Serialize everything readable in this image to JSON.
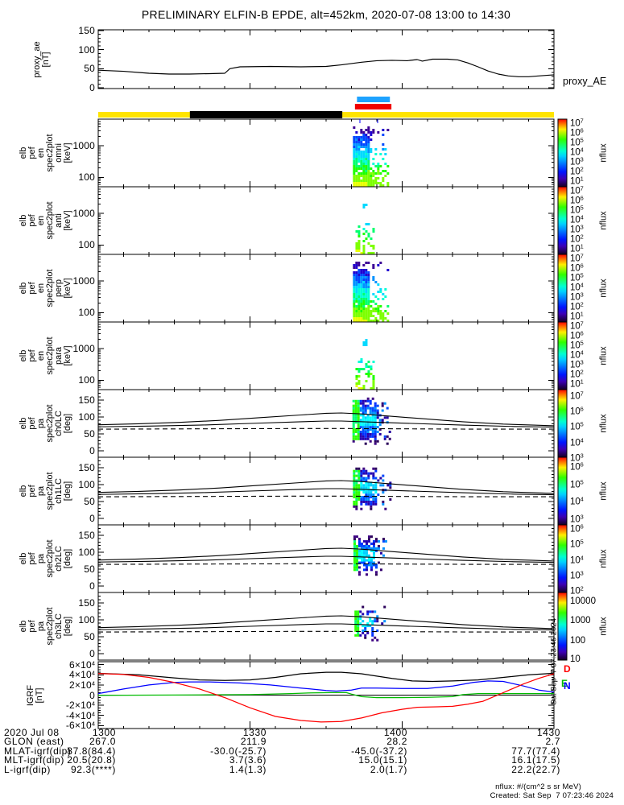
{
  "title": "PRELIMINARY ELFIN-B EPDE, alt=452km, 2020-07-08 13:00 to 14:30",
  "proxy_right_label": "proxy_AE",
  "side_stamp": "Sat Sep  7 07:23:46 2024",
  "footer": {
    "units": "nflux: #/(cm^2 s sr MeV)",
    "created": "Created: Sat Sep  7 07:23:46 2024"
  },
  "time_axis": {
    "tick_minutes": [
      0,
      30,
      60,
      90
    ],
    "tick_labels": [
      "1300",
      "1330",
      "1400",
      "1430"
    ],
    "minor_step_minutes": 5
  },
  "bars": {
    "survey": {
      "color": "#ffe400",
      "start_min": 0,
      "end_min": 90
    },
    "survey_gap": {
      "color": "#000000",
      "start_min": 18.1,
      "end_min": 48.2
    },
    "blue_interval": {
      "color": "#1da2ff",
      "start_min": 51.1,
      "end_min": 57.6
    },
    "red_interval": {
      "color": "#f00000",
      "start_min": 50.7,
      "end_min": 57.9
    }
  },
  "colorbar_label": "nflux",
  "panels": [
    {
      "key": "proxy",
      "label_lines": "proxy_ae\n[nT]",
      "ytick_labels": [
        "150",
        "100",
        "50",
        "0"
      ]
    },
    {
      "key": "omni",
      "label_lines": "elb\npef\nen\nspec2plot\nomni\n[keV]",
      "ytick_labels": [
        "1000",
        "100"
      ],
      "cbar_ticks": [
        "10^7",
        "10^6",
        "10^5",
        "10^4",
        "10^3",
        "10^2",
        "10^1"
      ]
    },
    {
      "key": "anti",
      "label_lines": "elb\npef\nen\nspec2plot\nanti\n[keV]",
      "ytick_labels": [
        "1000",
        "100"
      ],
      "cbar_ticks": [
        "10^7",
        "10^6",
        "10^5",
        "10^4",
        "10^3",
        "10^2",
        "10^1"
      ]
    },
    {
      "key": "perp",
      "label_lines": "elb\npef\nen\nspec2plot\nperp\n[keV]",
      "ytick_labels": [
        "1000",
        "100"
      ],
      "cbar_ticks": [
        "10^7",
        "10^6",
        "10^5",
        "10^4",
        "10^3",
        "10^2",
        "10^1"
      ]
    },
    {
      "key": "para",
      "label_lines": "elb\npef\nen\nspec2plot\npara\n[keV]",
      "ytick_labels": [
        "1000",
        "100"
      ],
      "cbar_ticks": [
        "10^7",
        "10^6",
        "10^5",
        "10^4",
        "10^3",
        "10^2",
        "10^1"
      ]
    },
    {
      "key": "ch0lc",
      "label_lines": "elb\npef\npa\nspec2plot\nch0LC\n[deg]",
      "ytick_labels": [
        "150",
        "100",
        "50",
        "0"
      ],
      "cbar_ticks": [
        "10^7",
        "10^6",
        "10^5",
        "10^4",
        "10^3"
      ]
    },
    {
      "key": "ch1lc",
      "label_lines": "elb\npef\npa\nspec2plot\nch1LC\n[deg]",
      "ytick_labels": [
        "150",
        "100",
        "50",
        "0"
      ],
      "cbar_ticks": [
        "10^6",
        "10^5",
        "10^4",
        "10^3"
      ]
    },
    {
      "key": "ch2lc",
      "label_lines": "elb\npef\npa\nspec2plot\nch2LC\n[deg]",
      "ytick_labels": [
        "150",
        "100",
        "50",
        "0"
      ],
      "cbar_ticks": [
        "10^6",
        "10^5",
        "10^4",
        "10^3",
        "10^2"
      ]
    },
    {
      "key": "ch3lc",
      "label_lines": "elb\npef\npa\nspec2plot\nch3LC\n[deg]",
      "ytick_labels": [
        "150",
        "100",
        "50",
        "0"
      ],
      "cbar_ticks": [
        "10000",
        "1000",
        "100",
        "10"
      ]
    },
    {
      "key": "igrf",
      "label_lines": "IGRF\n[nT]",
      "ytick_labels": [
        "6×10^4",
        "4×10^4",
        "2×10^4",
        "0",
        "-2×10^4",
        "-4×10^4",
        "-6×10^4"
      ],
      "series_tags": [
        {
          "text": "D",
          "color": "#ff0000"
        },
        {
          "text": "E",
          "color": "#00bb00"
        },
        {
          "text": "N",
          "color": "#0000ff"
        }
      ]
    }
  ],
  "ephemeris": {
    "rows": [
      {
        "label": "2020 Jul 08",
        "values": [
          "1300",
          "1330",
          "1400",
          "1430"
        ]
      },
      {
        "label": "GLON (east)",
        "values": [
          "267.0",
          "211.9",
          "28.2",
          "2.7"
        ]
      },
      {
        "label": "MLAT-igrf(dip)",
        "values": [
          "87.8(84.4)",
          "-30.0(-25.7)",
          "-45.0(-37.2)",
          "77.7(77.4)"
        ]
      },
      {
        "label": "MLT-igrf(dip)",
        "values": [
          "20.5(20.8)",
          "3.7(3.6)",
          "15.0(15.1)",
          "16.1(17.5)"
        ]
      },
      {
        "label": "L-igrf(dip)",
        "values": [
          "92.3(****)",
          "1.4(1.3)",
          "2.0(1.7)",
          "22.2(22.7)"
        ]
      }
    ]
  },
  "chart_data": [
    {
      "id": "proxy_ae",
      "type": "line",
      "title": "proxy_AE",
      "ylabel": "proxy_ae [nT]",
      "ylim": [
        0,
        160
      ],
      "x_unit": "minutes after 13:00",
      "points": [
        [
          0,
          46
        ],
        [
          5,
          43
        ],
        [
          10,
          38
        ],
        [
          14,
          36
        ],
        [
          18,
          36
        ],
        [
          22,
          37
        ],
        [
          25,
          38
        ],
        [
          26,
          50
        ],
        [
          28,
          55
        ],
        [
          34,
          56
        ],
        [
          40,
          55
        ],
        [
          45,
          56
        ],
        [
          48,
          60
        ],
        [
          52,
          67
        ],
        [
          55,
          71
        ],
        [
          58,
          72
        ],
        [
          61,
          71
        ],
        [
          63,
          74
        ],
        [
          64,
          70
        ],
        [
          66,
          75
        ],
        [
          69,
          75
        ],
        [
          71,
          73
        ],
        [
          73,
          65
        ],
        [
          75,
          55
        ],
        [
          77,
          44
        ],
        [
          79,
          36
        ],
        [
          81,
          31
        ],
        [
          83,
          29
        ],
        [
          85,
          29
        ],
        [
          87,
          31
        ],
        [
          90,
          34
        ]
      ]
    },
    {
      "id": "elb_pef_en_spec2plot_omni",
      "type": "heatmap",
      "ylabel": "elb pef en spec2plot omni [keV]",
      "yscale": "log",
      "ylim_kev": [
        50,
        7000
      ],
      "zlabel": "nflux",
      "zticks": [
        "10^7",
        "10^6",
        "10^5",
        "10^4",
        "10^3",
        "10^2",
        "10^1"
      ],
      "burst_window_min": [
        50.3,
        57.5
      ],
      "density": "dense"
    },
    {
      "id": "elb_pef_en_spec2plot_anti",
      "type": "heatmap",
      "ylabel": "elb pef en spec2plot anti [keV]",
      "yscale": "log",
      "ylim_kev": [
        50,
        7000
      ],
      "zlabel": "nflux",
      "zticks": [
        "10^7",
        "10^6",
        "10^5",
        "10^4",
        "10^3",
        "10^2",
        "10^1"
      ],
      "burst_window_min": [
        50.8,
        54.6
      ],
      "density": "sparse"
    },
    {
      "id": "elb_pef_en_spec2plot_perp",
      "type": "heatmap",
      "ylabel": "elb pef en spec2plot perp [keV]",
      "yscale": "log",
      "ylim_kev": [
        50,
        7000
      ],
      "zlabel": "nflux",
      "zticks": [
        "10^7",
        "10^6",
        "10^5",
        "10^4",
        "10^3",
        "10^2",
        "10^1"
      ],
      "burst_window_min": [
        50.3,
        57.5
      ],
      "density": "dense"
    },
    {
      "id": "elb_pef_en_spec2plot_para",
      "type": "heatmap",
      "ylabel": "elb pef en spec2plot para [keV]",
      "yscale": "log",
      "ylim_kev": [
        50,
        7000
      ],
      "zlabel": "nflux",
      "zticks": [
        "10^7",
        "10^6",
        "10^5",
        "10^4",
        "10^3",
        "10^2",
        "10^1"
      ],
      "burst_window_min": [
        50.8,
        54.6
      ],
      "density": "sparse"
    },
    {
      "id": "elb_pef_pa_spec2plot_ch0LC",
      "type": "heatmap",
      "ylabel": "elb pef pa spec2plot ch0LC [deg]",
      "ylim_deg": [
        0,
        180
      ],
      "zticks": [
        "10^7",
        "10^6",
        "10^5",
        "10^4",
        "10^3"
      ],
      "burst_window_min": [
        50.2,
        58.0
      ],
      "blob_halfwidth_deg": 57,
      "density": 0.96
    },
    {
      "id": "elb_pef_pa_spec2plot_ch1LC",
      "type": "heatmap",
      "ylabel": "elb pef pa spec2plot ch1LC [deg]",
      "ylim_deg": [
        0,
        180
      ],
      "zticks": [
        "10^6",
        "10^5",
        "10^4",
        "10^3"
      ],
      "burst_window_min": [
        50.3,
        57.8
      ],
      "blob_halfwidth_deg": 50,
      "density": 0.9
    },
    {
      "id": "elb_pef_pa_spec2plot_ch2LC",
      "type": "heatmap",
      "ylabel": "elb pef pa spec2plot ch2LC [deg]",
      "ylim_deg": [
        0,
        180
      ],
      "zticks": [
        "10^6",
        "10^5",
        "10^4",
        "10^3",
        "10^2"
      ],
      "burst_window_min": [
        50.4,
        57.2
      ],
      "blob_halfwidth_deg": 44,
      "density": 0.85
    },
    {
      "id": "elb_pef_pa_spec2plot_ch3LC",
      "type": "heatmap",
      "ylabel": "elb pef pa spec2plot ch3LC [deg]",
      "ylim_deg": [
        0,
        180
      ],
      "zticks": [
        "10000",
        "1000",
        "100",
        "10"
      ],
      "burst_window_min": [
        50.6,
        56.6
      ],
      "blob_halfwidth_deg": 38,
      "density": 0.5
    },
    {
      "id": "pitch_overlays",
      "type": "line",
      "series": [
        {
          "name": "loss-cone-upper-solid",
          "points": [
            [
              0,
              77
            ],
            [
              8,
              80
            ],
            [
              16,
              84
            ],
            [
              24,
              90
            ],
            [
              32,
              98
            ],
            [
              40,
              106
            ],
            [
              45,
              111
            ],
            [
              48,
              112
            ],
            [
              52,
              109
            ],
            [
              58,
              102
            ],
            [
              64,
              95
            ],
            [
              72,
              86
            ],
            [
              80,
              79
            ],
            [
              86,
              76
            ],
            [
              90,
              74
            ]
          ]
        },
        {
          "name": "loss-cone-lower-solid",
          "points": [
            [
              0,
              71
            ],
            [
              10,
              73
            ],
            [
              20,
              76
            ],
            [
              30,
              81
            ],
            [
              40,
              86
            ],
            [
              45,
              88
            ],
            [
              48,
              88
            ],
            [
              54,
              85
            ],
            [
              62,
              81
            ],
            [
              72,
              76
            ],
            [
              82,
              72
            ],
            [
              90,
              70
            ]
          ]
        },
        {
          "name": "dashed-reference",
          "dashed": true,
          "points": [
            [
              0,
              64
            ],
            [
              20,
              65
            ],
            [
              40,
              66
            ],
            [
              48,
              66
            ],
            [
              60,
              65
            ],
            [
              75,
              64
            ],
            [
              90,
              64
            ]
          ]
        }
      ]
    },
    {
      "id": "igrf",
      "type": "line",
      "ylabel": "IGRF [nT]",
      "ylim": [
        -65000,
        65000
      ],
      "x_unit": "minutes after 13:00",
      "series": [
        {
          "name": "Bt",
          "color": "#000000",
          "points_1e4": [
            [
              0,
              4.3
            ],
            [
              8,
              4.0
            ],
            [
              15,
              3.4
            ],
            [
              20,
              3.0
            ],
            [
              25,
              2.9
            ],
            [
              30,
              3.0
            ],
            [
              35,
              3.5
            ],
            [
              40,
              4.2
            ],
            [
              45,
              4.5
            ],
            [
              48,
              4.5
            ],
            [
              52,
              4.2
            ],
            [
              58,
              3.3
            ],
            [
              62,
              2.8
            ],
            [
              66,
              2.7
            ],
            [
              70,
              2.8
            ],
            [
              75,
              3.0
            ],
            [
              80,
              3.5
            ],
            [
              85,
              4.0
            ],
            [
              90,
              4.3
            ]
          ]
        },
        {
          "name": "N",
          "color": "#0000ff",
          "points_1e4": [
            [
              0,
              0.3
            ],
            [
              5,
              1.2
            ],
            [
              10,
              2.0
            ],
            [
              15,
              2.5
            ],
            [
              18,
              2.6
            ],
            [
              22,
              2.6
            ],
            [
              28,
              2.4
            ],
            [
              34,
              2.0
            ],
            [
              40,
              1.4
            ],
            [
              45,
              0.9
            ],
            [
              47,
              0.8
            ],
            [
              50,
              1.0
            ],
            [
              52,
              1.4
            ],
            [
              55,
              1.4
            ],
            [
              60,
              1.3
            ],
            [
              65,
              1.3
            ],
            [
              70,
              1.8
            ],
            [
              74,
              2.5
            ],
            [
              77,
              2.8
            ],
            [
              80,
              2.7
            ],
            [
              84,
              1.8
            ],
            [
              87,
              1.0
            ],
            [
              90,
              0.6
            ]
          ]
        },
        {
          "name": "E",
          "color": "#00bb00",
          "points_1e4": [
            [
              0,
              -0.05
            ],
            [
              10,
              0.0
            ],
            [
              20,
              0.05
            ],
            [
              30,
              0.1
            ],
            [
              38,
              0.3
            ],
            [
              42,
              0.45
            ],
            [
              46,
              0.5
            ],
            [
              49,
              0.5
            ],
            [
              50,
              0.2
            ],
            [
              52,
              -0.3
            ],
            [
              55,
              -0.5
            ],
            [
              60,
              -0.5
            ],
            [
              65,
              -0.45
            ],
            [
              70,
              -0.3
            ],
            [
              72,
              0.1
            ],
            [
              75,
              0.3
            ],
            [
              80,
              0.3
            ],
            [
              85,
              0.3
            ],
            [
              90,
              0.3
            ]
          ]
        },
        {
          "name": "D",
          "color": "#ff0000",
          "points_1e4": [
            [
              0,
              4.25
            ],
            [
              5,
              4.1
            ],
            [
              10,
              3.5
            ],
            [
              15,
              2.5
            ],
            [
              20,
              1.2
            ],
            [
              25,
              -0.5
            ],
            [
              30,
              -2.5
            ],
            [
              35,
              -4.2
            ],
            [
              40,
              -5.0
            ],
            [
              44,
              -5.3
            ],
            [
              48,
              -5.2
            ],
            [
              52,
              -4.5
            ],
            [
              56,
              -3.5
            ],
            [
              60,
              -2.8
            ],
            [
              63,
              -2.4
            ],
            [
              67,
              -2.3
            ],
            [
              70,
              -2.2
            ],
            [
              73,
              -1.8
            ],
            [
              76,
              -1.2
            ],
            [
              80,
              0.5
            ],
            [
              84,
              2.2
            ],
            [
              87,
              3.3
            ],
            [
              90,
              4.2
            ]
          ]
        }
      ]
    }
  ]
}
